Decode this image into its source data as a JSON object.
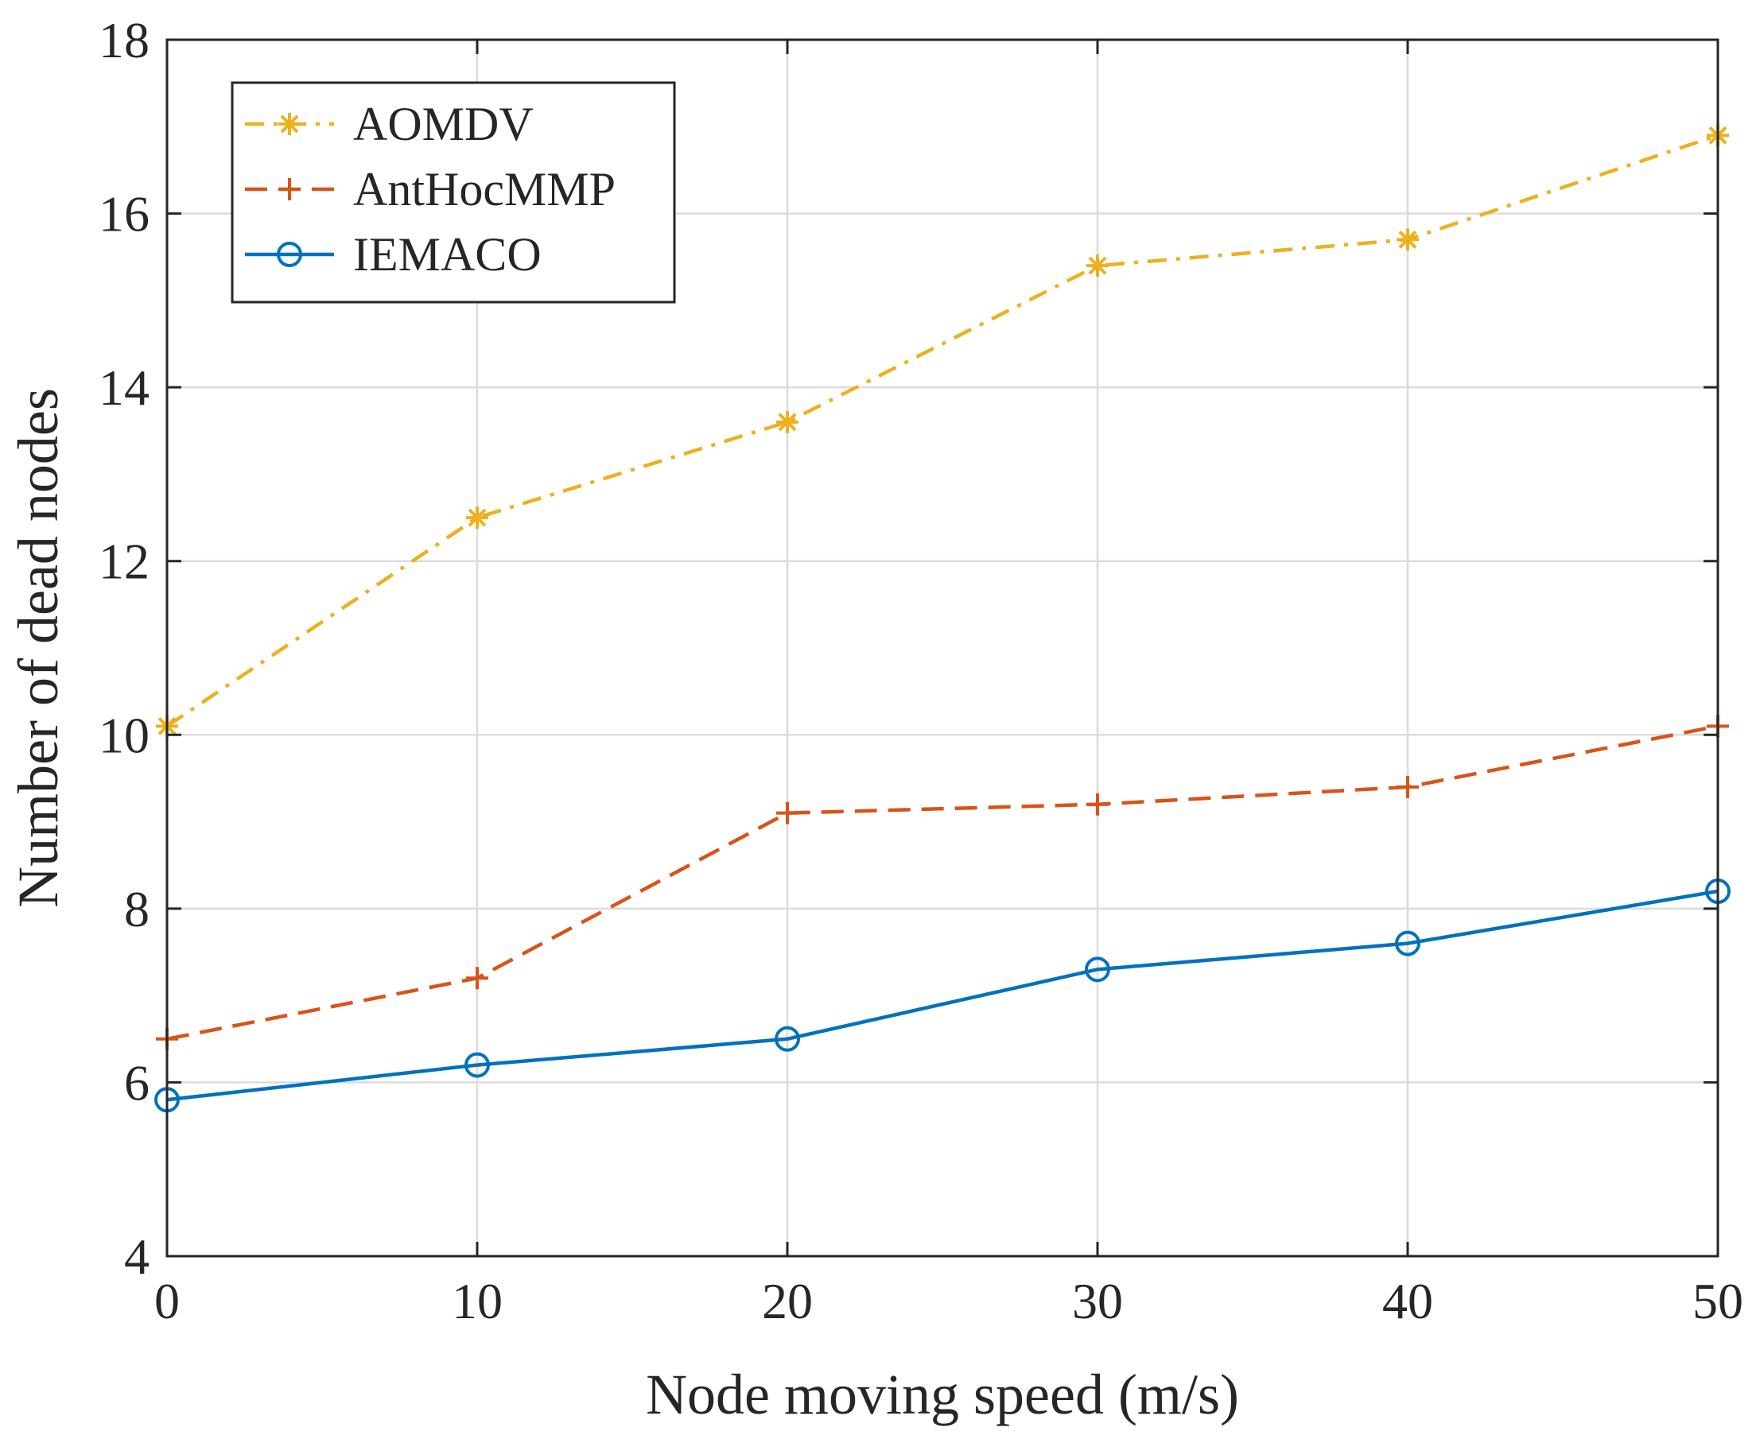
{
  "chart_data": {
    "type": "line",
    "title": "",
    "xlabel": "Node moving speed (m/s)",
    "ylabel": "Number of dead nodes",
    "x": [
      0,
      10,
      20,
      30,
      40,
      50
    ],
    "xlim": [
      0,
      50
    ],
    "ylim": [
      4,
      18
    ],
    "xticks": [
      0,
      10,
      20,
      30,
      40,
      50
    ],
    "yticks": [
      4,
      6,
      8,
      10,
      12,
      14,
      16,
      18
    ],
    "grid": true,
    "legend_position": "top-left",
    "series": [
      {
        "name": "AOMDV",
        "values": [
          10.1,
          12.5,
          13.6,
          15.4,
          15.7,
          16.9
        ],
        "color": "#EDB120",
        "line_style": "dash-dot",
        "marker": "asterisk"
      },
      {
        "name": "AntHocMMP",
        "values": [
          6.5,
          7.2,
          9.1,
          9.2,
          9.4,
          10.1
        ],
        "color": "#D95319",
        "line_style": "dashed",
        "marker": "plus"
      },
      {
        "name": "IEMACO",
        "values": [
          5.8,
          6.2,
          6.5,
          7.3,
          7.6,
          8.2
        ],
        "color": "#0072BD",
        "line_style": "solid",
        "marker": "circle"
      }
    ]
  }
}
